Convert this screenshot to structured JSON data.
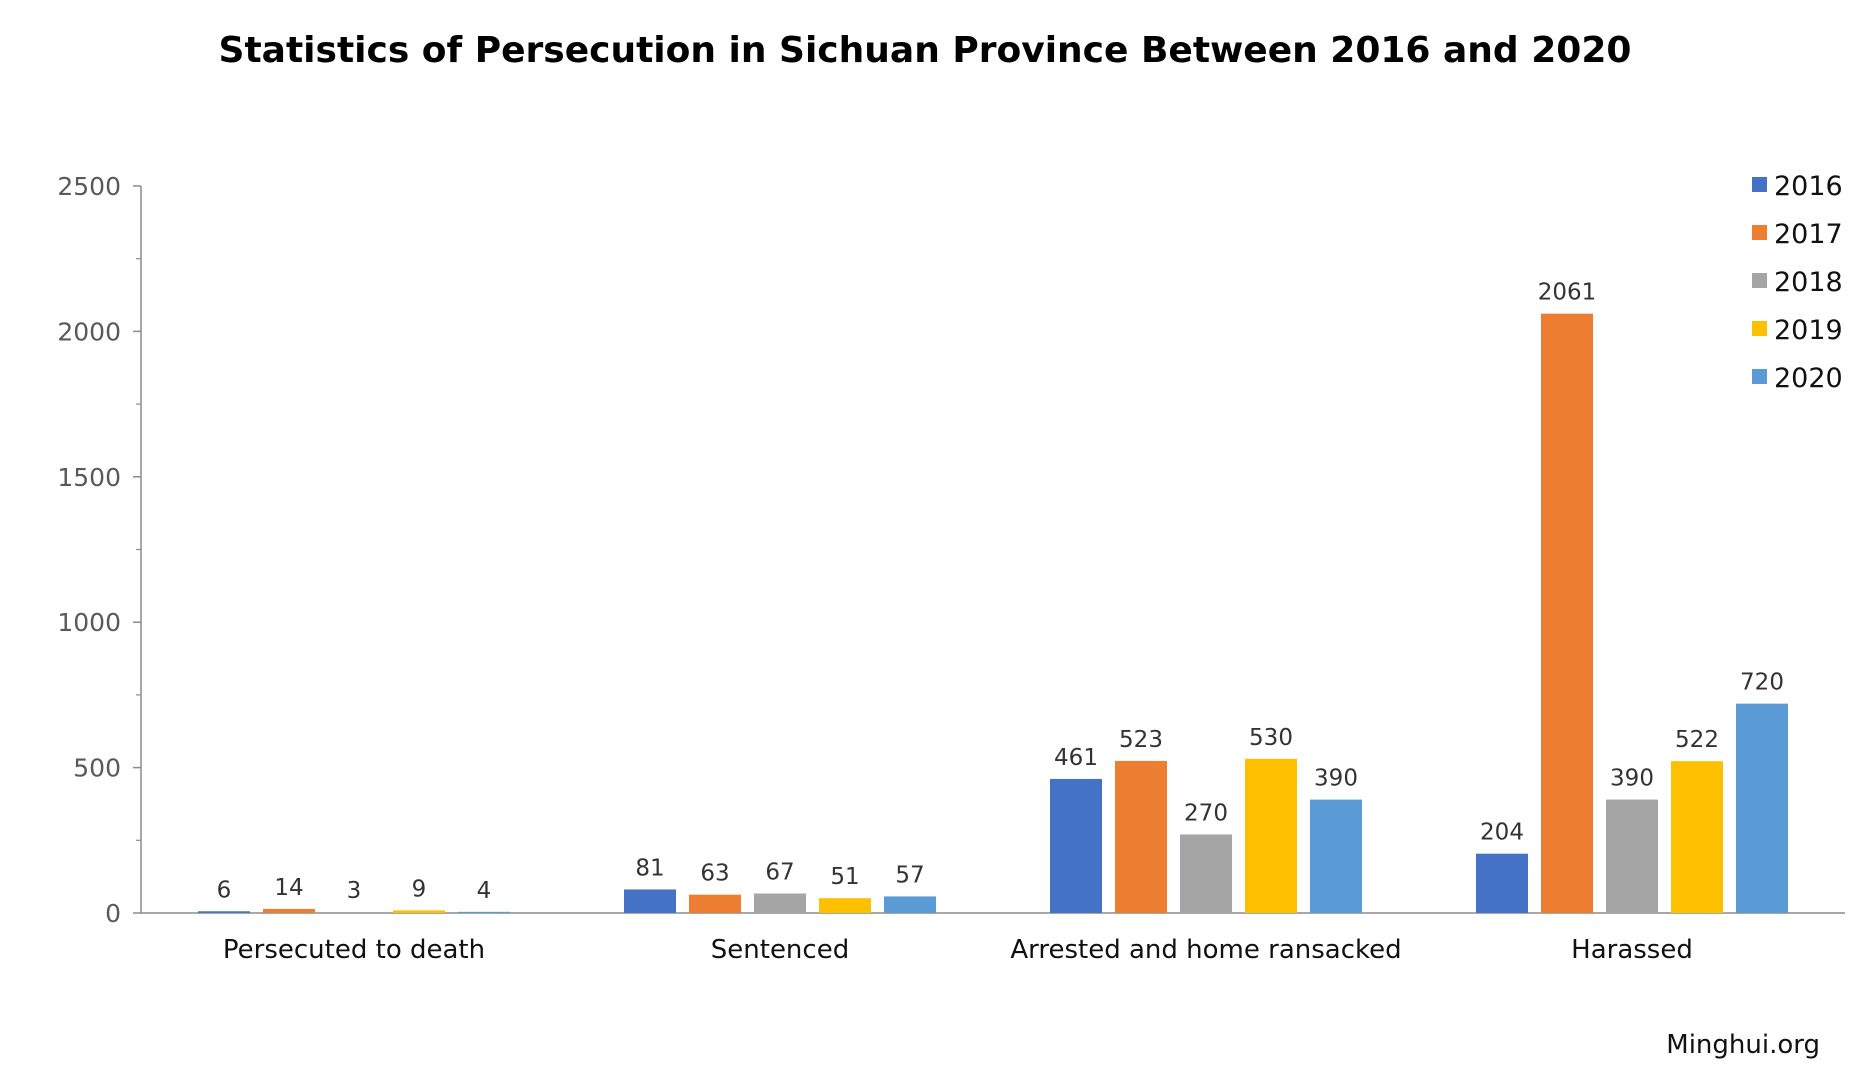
{
  "chart_data": {
    "type": "bar",
    "title": "Statistics of Persecution in Sichuan Province Between 2016 and 2020",
    "xlabel": "",
    "ylabel": "",
    "ylim": [
      0,
      2500
    ],
    "yticks": [
      0,
      500,
      1000,
      1500,
      2000,
      2500
    ],
    "grid": false,
    "legend_position": "top-right",
    "categories": [
      "Persecuted to death",
      "Sentenced",
      "Arrested and home ransacked",
      "Harassed"
    ],
    "series": [
      {
        "name": "2016",
        "color": "#4472C4",
        "values": [
          6,
          81,
          461,
          204
        ]
      },
      {
        "name": "2017",
        "color": "#ED7D31",
        "values": [
          14,
          63,
          523,
          2061
        ]
      },
      {
        "name": "2018",
        "color": "#A5A5A5",
        "values": [
          3,
          67,
          270,
          390
        ]
      },
      {
        "name": "2019",
        "color": "#FFC000",
        "values": [
          9,
          51,
          530,
          522
        ]
      },
      {
        "name": "2020",
        "color": "#5B9BD5",
        "values": [
          4,
          57,
          390,
          720
        ]
      }
    ]
  },
  "source": "Minghui.org"
}
